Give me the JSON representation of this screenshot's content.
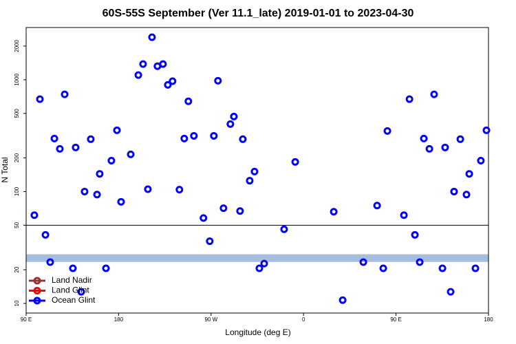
{
  "chart_data": {
    "type": "scatter",
    "title": "60S-55S September (Ver 11.1_late)   2019-01-01 to 2023-04-30",
    "x_label": "Longitude (deg E)",
    "y_label": "N Total",
    "xlim": [
      90,
      540
    ],
    "ylim": [
      8.2,
      2930
    ],
    "log_y": true,
    "xticks": [
      {
        "value": 90,
        "label": "90 E"
      },
      {
        "value": 180,
        "label": "180"
      },
      {
        "value": 270,
        "label": "90 W"
      },
      {
        "value": 360,
        "label": "0"
      },
      {
        "value": 450,
        "label": "90 E"
      },
      {
        "value": 540,
        "label": "180"
      }
    ],
    "yticks": [
      10,
      20,
      50,
      100,
      200,
      500,
      1000,
      2000
    ],
    "reference_line": 50,
    "band": [
      23.5,
      27.5
    ],
    "band_color": "#a7bde0",
    "legend_position": "lower left",
    "series": [
      {
        "name": "Land Nadir",
        "color": "#993333",
        "x": [],
        "values": []
      },
      {
        "name": "Land Glint",
        "color": "#ff0000",
        "x": [],
        "values": []
      },
      {
        "name": "Ocean Glint",
        "color": "#0000ff",
        "x": [
          98,
          103.4,
          108.8,
          113.4,
          117.5,
          122.8,
          127.5,
          135.5,
          138.2,
          143.6,
          146.9,
          152.9,
          159,
          161.6,
          167.7,
          173,
          178.4,
          182.4,
          191.8,
          199.2,
          203.8,
          208.5,
          212.5,
          217.8,
          223.2,
          227.9,
          232.5,
          239.2,
          243.9,
          247.9,
          253.3,
          262.6,
          268.7,
          272.7,
          276.7,
          282.1,
          288.8,
          292.2,
          298.2,
          300.9,
          307.6,
          312.3,
          317,
          321.7,
          341.1,
          351.9,
          389.4,
          398.1,
          418.2,
          431.6,
          437.6,
          441.6,
          457.7,
          463.1,
          468.4,
          473.1,
          477.1,
          482.5,
          487.1,
          495.2,
          497.8,
          503.2,
          506.5,
          512.6,
          518.6,
          521.3,
          527.3,
          532.6,
          538
        ],
        "values": [
          61.5,
          670,
          41,
          23.4,
          298,
          241,
          740,
          20.6,
          248,
          12.7,
          100,
          294,
          94,
          144,
          20.6,
          189,
          353,
          81,
          215,
          1100,
          1380,
          105,
          2400,
          1320,
          1380,
          900,
          970,
          104,
          298,
          641,
          315,
          58,
          36,
          315,
          980,
          71,
          401,
          469,
          67,
          294,
          125,
          151,
          20.6,
          22.7,
          46,
          184,
          66,
          10.7,
          23.4,
          75,
          20.6,
          348,
          61.5,
          670,
          41,
          23.4,
          298,
          241,
          740,
          20.6,
          248,
          12.7,
          100,
          294,
          94,
          144,
          20.6,
          189,
          353
        ]
      }
    ]
  }
}
